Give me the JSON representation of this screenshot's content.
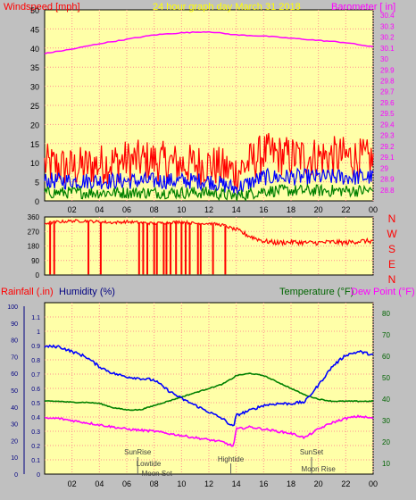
{
  "colors": {
    "frame": "#c0c0c0",
    "plot_bg": "#ffffa8",
    "grid": "#ff9090",
    "red": "#ff0000",
    "blue": "#0000ff",
    "green": "#008000",
    "magenta": "#ff00ff",
    "yellow_title": "#ffff00",
    "navy": "#000080",
    "dark_green": "#006400",
    "tick_text": "#000000"
  },
  "header": {
    "left_label": "Windspeed [mph]",
    "title": "24 hour graph day   March 31 2018",
    "right_label": "Barometer [ in]"
  },
  "bottom_header": {
    "rainfall": "Rainfall (.in)",
    "humidity": "Humidity (%)",
    "temperature": "Temperature (°F)",
    "dewpoint": "Dew Point (°F)"
  },
  "compass": [
    "N",
    "W",
    "S",
    "E",
    "N"
  ],
  "x_ticks": [
    "02",
    "04",
    "06",
    "08",
    "10",
    "12",
    "14",
    "16",
    "18",
    "20",
    "22",
    "00"
  ],
  "events": {
    "sunrise": "SunRise",
    "lowtide": "Lowtide",
    "moonset": "Moon Set",
    "hightide": "Hightide",
    "sunset": "SunSet",
    "moonrise": "Moon Rise"
  },
  "chart_data": [
    {
      "type": "line",
      "name": "wind-barometer",
      "x_unit": "hours",
      "x": [
        0,
        2,
        4,
        6,
        8,
        10,
        12,
        14,
        16,
        18,
        20,
        22,
        24
      ],
      "y_left_ticks": [
        0,
        5,
        10,
        15,
        20,
        25,
        30,
        35,
        40,
        45,
        50
      ],
      "y_left_range": [
        0,
        50
      ],
      "y_right_ticks": [
        "28.8",
        "28.9",
        "29",
        "29.1",
        "29.2",
        "29.3",
        "29.4",
        "29.5",
        "29.6",
        "29.7",
        "29.8",
        "29.9",
        "30",
        "30.1",
        "30.2",
        "30.3",
        "30.4"
      ],
      "y_right_range": [
        28.7,
        30.45
      ],
      "series": [
        {
          "name": "Windspeed [mph]",
          "color_key": "red",
          "axis": "left",
          "values": [
            9,
            8,
            9,
            10,
            10,
            9,
            9,
            7,
            12,
            11,
            11,
            11,
            10
          ]
        },
        {
          "name": "",
          "color_key": "blue",
          "axis": "left",
          "values": [
            5,
            5,
            5,
            5,
            5,
            5,
            5,
            3,
            6,
            6,
            6,
            6,
            6
          ]
        },
        {
          "name": "",
          "color_key": "green",
          "axis": "left",
          "values": [
            2,
            2,
            2,
            2,
            2,
            2,
            2,
            1,
            2.5,
            2.5,
            2.5,
            2.5,
            2.5
          ]
        },
        {
          "name": "Barometer [ in]",
          "color_key": "magenta",
          "axis": "right",
          "values": [
            30.05,
            30.09,
            30.14,
            30.18,
            30.22,
            30.24,
            30.25,
            30.22,
            30.21,
            30.19,
            30.17,
            30.15,
            30.11
          ]
        }
      ]
    },
    {
      "type": "scatter",
      "name": "wind-direction",
      "x_unit": "hours",
      "y_ticks": [
        0,
        90,
        180,
        270,
        360
      ],
      "y_range": [
        0,
        360
      ],
      "x": [
        0,
        1,
        2,
        3,
        4,
        5,
        6,
        7,
        8,
        9,
        10,
        11,
        12,
        13,
        14,
        15,
        16,
        17,
        18,
        19,
        20,
        21,
        22,
        23,
        24
      ],
      "values": [
        320,
        330,
        335,
        335,
        330,
        325,
        330,
        325,
        320,
        325,
        330,
        320,
        320,
        310,
        280,
        240,
        210,
        200,
        205,
        200,
        200,
        205,
        200,
        210,
        210
      ],
      "drops_hours": [
        0.4,
        0.7,
        3.2,
        4.1,
        6.9,
        7.2,
        7.5,
        8.0,
        8.2,
        8.7,
        8.9,
        9.2,
        9.6,
        10.0,
        10.3,
        10.6,
        11.2,
        11.4,
        12.3,
        13.2
      ]
    },
    {
      "type": "line",
      "name": "humidity-temperature",
      "x_unit": "hours",
      "x": [
        0,
        1,
        2,
        3,
        4,
        5,
        6,
        7,
        8,
        9,
        10,
        11,
        12,
        13,
        13.8,
        14,
        15,
        16,
        17,
        18,
        19,
        20,
        21,
        22,
        23,
        24
      ],
      "y_left_outer_ticks": [
        0,
        10,
        20,
        30,
        40,
        50,
        60,
        70,
        80,
        90,
        100
      ],
      "y_left_inner_ticks": [
        "0",
        "0.1",
        "0.2",
        "0.3",
        "0.4",
        "0.5",
        "0.6",
        "0.7",
        "0.8",
        "0.9",
        "1",
        "1.1"
      ],
      "y_right_ticks": [
        10,
        20,
        30,
        40,
        50,
        60,
        70,
        80
      ],
      "y_right_range": [
        5,
        85
      ],
      "series": [
        {
          "name": "Humidity (%)",
          "color_key": "blue",
          "axis": "outer",
          "values": [
            76,
            76,
            73,
            70,
            64,
            60,
            58,
            57,
            56,
            50,
            45,
            41,
            37,
            33,
            28,
            35,
            38,
            41,
            42,
            42,
            43,
            53,
            64,
            71,
            73,
            71
          ]
        },
        {
          "name": "Temperature (°F)",
          "color_key": "green",
          "axis": "right",
          "values": [
            39,
            39,
            38.5,
            38.5,
            38,
            36,
            35,
            35,
            37,
            39,
            41,
            43,
            45,
            47,
            50,
            51,
            52,
            51,
            48,
            45,
            42,
            40,
            39,
            39,
            39,
            39
          ]
        },
        {
          "name": "Dew Point (°F)",
          "color_key": "magenta",
          "axis": "right",
          "values": [
            31,
            31,
            30,
            29,
            28,
            27,
            26,
            25.5,
            25,
            24,
            23,
            22,
            21,
            20,
            18,
            26,
            27,
            26,
            25,
            24,
            22,
            26,
            29,
            31,
            32,
            31
          ]
        }
      ],
      "events_hours": {
        "sunrise": 6.8,
        "lowtide": 7.6,
        "moonset": 8.2,
        "hightide": 13.6,
        "sunset": 19.5,
        "moonrise": 20.0
      }
    }
  ]
}
